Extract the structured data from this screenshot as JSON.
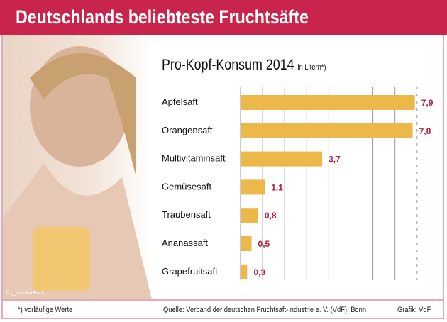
{
  "title": "Deutschlands beliebteste Fruchtsäfte",
  "photo_credit": "© g_studio/iStock",
  "footer": {
    "note": "*) vorläufige Werte",
    "source": "Quelle: Verband der deutschen Fruchtsaft-Industrie e. V. (VdF), Bonn",
    "graphic": "Grafik: VdF"
  },
  "colors": {
    "header": "#c8244c",
    "bar": "#ecb84a",
    "value": "#b4203f"
  },
  "chart_data": {
    "type": "bar",
    "orientation": "horizontal",
    "title": "Pro-Kopf-Konsum 2014",
    "unit": "in Litern*)",
    "categories": [
      "Apfelsaft",
      "Orangensaft",
      "Multivitaminsaft",
      "Gemüsesaft",
      "Traubensaft",
      "Ananassaft",
      "Grapefruitsaft"
    ],
    "values": [
      7.9,
      7.8,
      3.7,
      1.1,
      0.8,
      0.5,
      0.3
    ],
    "value_labels": [
      "7,9",
      "7,8",
      "3,7",
      "1,1",
      "0,8",
      "0,5",
      "0,3"
    ],
    "xlim": [
      0,
      8
    ],
    "grid": true
  }
}
